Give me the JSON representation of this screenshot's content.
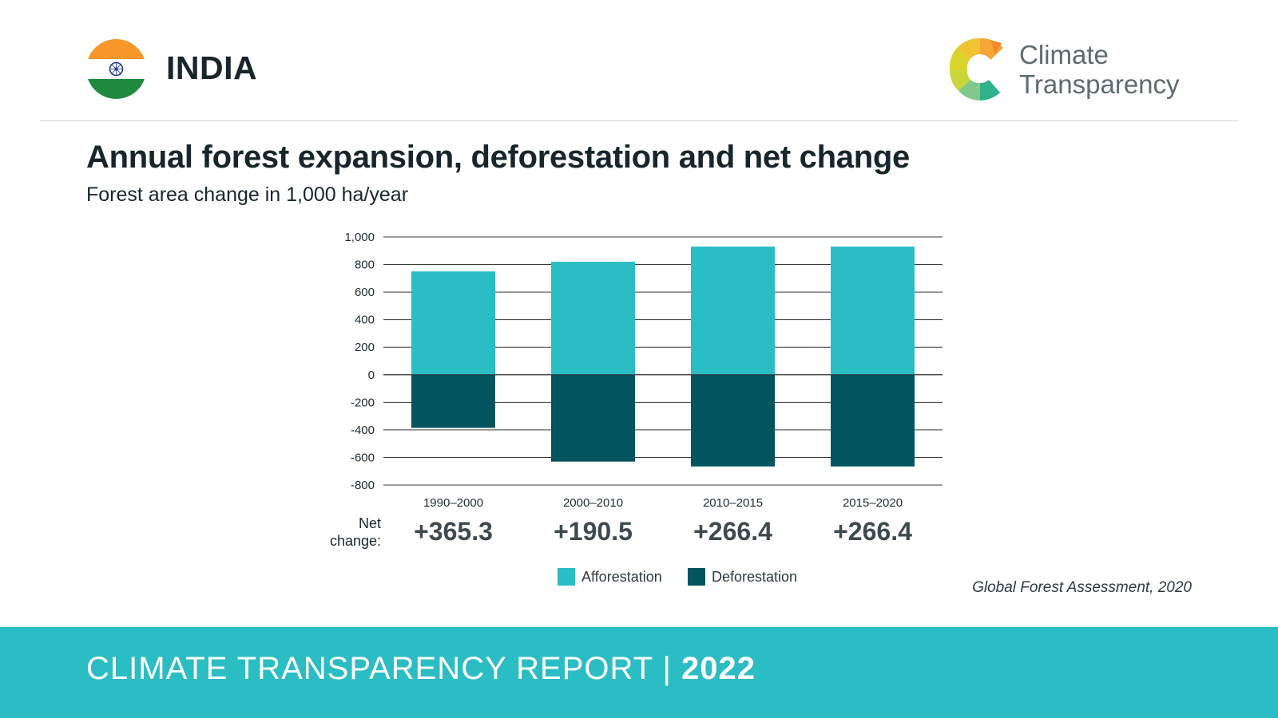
{
  "header": {
    "country": "INDIA",
    "logo_text_line1": "Climate",
    "logo_text_line2": "Transparency",
    "flag_icon": "india-flag-icon",
    "logo_icon": "climate-transparency-logo-icon"
  },
  "chart_data": {
    "type": "bar",
    "title": "Annual forest expansion, deforestation and net change",
    "subtitle": "Forest area change in 1,000 ha/year",
    "categories": [
      "1990–2000",
      "2000–2010",
      "2010–2015",
      "2015–2020"
    ],
    "series": [
      {
        "name": "Afforestation",
        "values": [
          750,
          820,
          930,
          930
        ],
        "color": "#2bbdc4"
      },
      {
        "name": "Deforestation",
        "values": [
          -385,
          -630,
          -665,
          -665
        ],
        "color": "#02555e"
      }
    ],
    "ylim": [
      -800,
      1000
    ],
    "yticks": [
      1000,
      800,
      600,
      400,
      200,
      0,
      -200,
      -400,
      -600,
      -800
    ],
    "ytick_labels": [
      "1,000",
      "800",
      "600",
      "400",
      "200",
      "0",
      "-200",
      "-400",
      "-600",
      "-800"
    ],
    "grid": true,
    "legend_position": "bottom",
    "net_change_label": "Net change:",
    "net_change": [
      "+365.3",
      "+190.5",
      "+266.4",
      "+266.4"
    ]
  },
  "legend": {
    "afforestation": "Afforestation",
    "deforestation": "Deforestation"
  },
  "source": "Global Forest Assessment, 2020",
  "footer": {
    "report": "CLIMATE TRANSPARENCY REPORT | ",
    "year": "2022"
  }
}
